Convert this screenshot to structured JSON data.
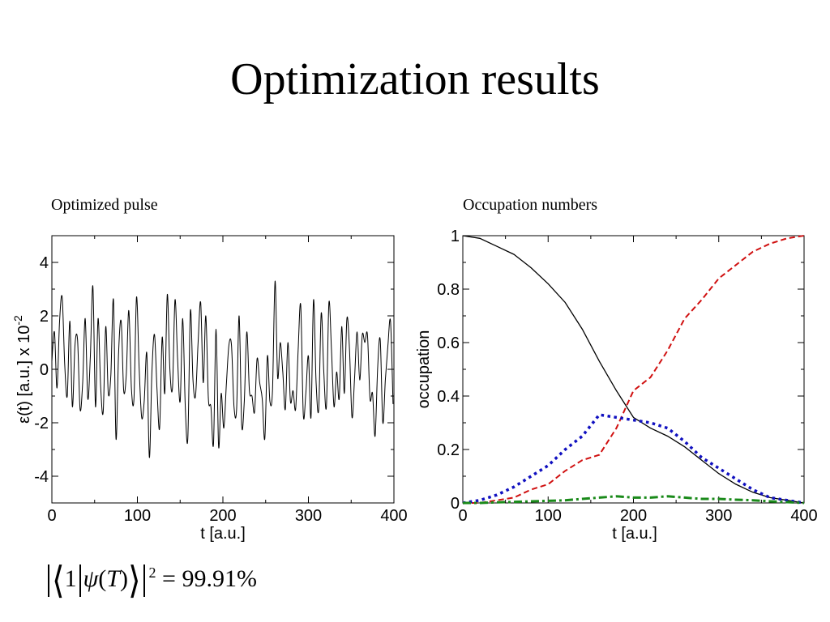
{
  "slide": {
    "title": "Optimization results",
    "left_caption": "Optimized pulse",
    "right_caption": "Occupation numbers"
  },
  "fidelity": {
    "ket_label": "1",
    "psi_symbol": "ψ",
    "open_paren": "(",
    "time_symbol": "T",
    "close_paren": ")",
    "exponent": "2",
    "equals_value": "= 99.91%"
  },
  "chart_data": [
    {
      "type": "line",
      "title": "",
      "xlabel": "t [a.u.]",
      "ylabel": "ε(t) [a.u.] x 10",
      "ylabel_exponent": "-2",
      "xlim": [
        0,
        400
      ],
      "ylim": [
        -5,
        5
      ],
      "xticks": [
        "0",
        "100",
        "200",
        "300",
        "400"
      ],
      "yticks": [
        "-4",
        "-2",
        "0",
        "2",
        "4"
      ],
      "grid": false,
      "legend": "none",
      "series": [
        {
          "color": "#000000",
          "x": [
            0,
            3,
            6,
            9,
            12,
            15,
            18,
            21,
            24,
            27,
            30,
            33,
            36,
            39,
            42,
            45,
            48,
            51,
            54,
            57,
            60,
            63,
            66,
            69,
            72,
            75,
            78,
            81,
            84,
            87,
            90,
            93,
            96,
            99,
            102,
            105,
            108,
            111,
            114,
            117,
            120,
            123,
            126,
            129,
            132,
            135,
            138,
            141,
            144,
            147,
            150,
            153,
            156,
            159,
            162,
            165,
            168,
            171,
            174,
            177,
            180,
            183,
            186,
            189,
            192,
            195,
            198,
            201,
            204,
            207,
            210,
            213,
            216,
            219,
            222,
            225,
            228,
            231,
            234,
            237,
            240,
            243,
            246,
            249,
            252,
            255,
            258,
            261,
            264,
            267,
            270,
            273,
            276,
            279,
            282,
            285,
            288,
            291,
            294,
            297,
            300,
            303,
            306,
            309,
            312,
            315,
            318,
            321,
            324,
            327,
            330,
            333,
            336,
            339,
            342,
            345,
            348,
            351,
            354,
            357,
            360,
            363,
            366,
            369,
            372,
            375,
            378,
            381,
            384,
            387,
            390,
            393,
            396,
            399
          ],
          "y": [
            0.3,
            1.4,
            -0.7,
            1.8,
            2.7,
            0.2,
            -1.0,
            1.8,
            -1.4,
            0.9,
            1.1,
            -1.5,
            -0.5,
            1.9,
            -1.1,
            0.5,
            3.1,
            -1.4,
            1.9,
            -0.6,
            -1.6,
            1.6,
            -0.9,
            -0.2,
            2.6,
            -2.6,
            0.6,
            1.8,
            -0.8,
            -0.2,
            2.2,
            -0.7,
            -1.1,
            2.7,
            0.1,
            -1.8,
            -1.2,
            0.6,
            -3.3,
            -0.1,
            1.3,
            -0.8,
            -2.2,
            1.2,
            -0.9,
            2.8,
            0.0,
            -0.7,
            2.6,
            0.4,
            -1.2,
            1.9,
            -1.4,
            -2.6,
            2.2,
            -0.4,
            -1.0,
            1.0,
            2.5,
            -0.5,
            2.0,
            -1.1,
            -1.4,
            -2.8,
            1.5,
            -2.9,
            -0.9,
            -2.2,
            -0.6,
            0.9,
            0.9,
            -1.4,
            -1.5,
            2.0,
            -2.1,
            -1.2,
            1.4,
            -0.8,
            -1.0,
            -1.6,
            0.4,
            -0.5,
            -1.1,
            -2.6,
            0.5,
            -1.2,
            -0.8,
            3.3,
            -0.3,
            1.0,
            -0.1,
            -1.5,
            1.0,
            -1.2,
            -0.8,
            -1.5,
            0.7,
            2.4,
            -1.7,
            -0.9,
            0.5,
            -1.8,
            2.6,
            -0.5,
            -1.5,
            2.1,
            -0.1,
            -1.4,
            2.5,
            0.7,
            -1.4,
            -0.1,
            -1.1,
            1.6,
            -0.9,
            1.9,
            0.8,
            -1.8,
            -0.3,
            1.4,
            -0.4,
            1.3,
            1.0,
            1.3,
            -1.1,
            -0.9,
            -2.5,
            0.1,
            1.1,
            -2.0,
            -0.4,
            0.9,
            1.8,
            -1.3
          ]
        }
      ]
    },
    {
      "type": "line",
      "title": "",
      "xlabel": "t [a.u.]",
      "ylabel": "occupation",
      "xlim": [
        0,
        400
      ],
      "ylim": [
        0,
        1
      ],
      "xticks": [
        "0",
        "100",
        "200",
        "300",
        "400"
      ],
      "yticks": [
        "0",
        "0.2",
        "0.4",
        "0.6",
        "0.8",
        "1"
      ],
      "grid": false,
      "legend": "none",
      "series": [
        {
          "color": "#000000",
          "style": "solid",
          "x": [
            0,
            20,
            40,
            60,
            80,
            100,
            120,
            140,
            160,
            180,
            200,
            220,
            240,
            260,
            280,
            300,
            320,
            340,
            360,
            380,
            400
          ],
          "y": [
            1.0,
            0.99,
            0.96,
            0.93,
            0.88,
            0.82,
            0.75,
            0.65,
            0.53,
            0.42,
            0.32,
            0.28,
            0.25,
            0.21,
            0.16,
            0.11,
            0.07,
            0.04,
            0.02,
            0.01,
            0.0
          ]
        },
        {
          "color": "#d01010",
          "style": "dashed",
          "x": [
            0,
            20,
            40,
            60,
            80,
            100,
            120,
            140,
            160,
            180,
            200,
            220,
            240,
            260,
            280,
            300,
            320,
            340,
            360,
            380,
            400
          ],
          "y": [
            0.0,
            0.0,
            0.01,
            0.02,
            0.05,
            0.07,
            0.12,
            0.16,
            0.18,
            0.28,
            0.42,
            0.47,
            0.57,
            0.69,
            0.76,
            0.84,
            0.89,
            0.94,
            0.97,
            0.99,
            1.0
          ]
        },
        {
          "color": "#1010c0",
          "style": "dotted",
          "x": [
            0,
            20,
            40,
            60,
            80,
            100,
            120,
            140,
            160,
            180,
            200,
            220,
            240,
            260,
            280,
            300,
            320,
            340,
            360,
            380,
            400
          ],
          "y": [
            0.0,
            0.01,
            0.03,
            0.06,
            0.1,
            0.14,
            0.2,
            0.25,
            0.33,
            0.32,
            0.31,
            0.3,
            0.28,
            0.23,
            0.17,
            0.13,
            0.09,
            0.05,
            0.02,
            0.01,
            0.0
          ]
        },
        {
          "color": "#1a8a1a",
          "style": "dashdot",
          "x": [
            0,
            20,
            40,
            60,
            80,
            100,
            120,
            140,
            160,
            180,
            200,
            220,
            240,
            260,
            280,
            300,
            320,
            340,
            360,
            380,
            400
          ],
          "y": [
            0.0,
            0.0,
            0.002,
            0.004,
            0.006,
            0.008,
            0.01,
            0.015,
            0.02,
            0.025,
            0.02,
            0.02,
            0.025,
            0.02,
            0.015,
            0.015,
            0.012,
            0.01,
            0.006,
            0.003,
            0.0
          ]
        }
      ]
    }
  ]
}
